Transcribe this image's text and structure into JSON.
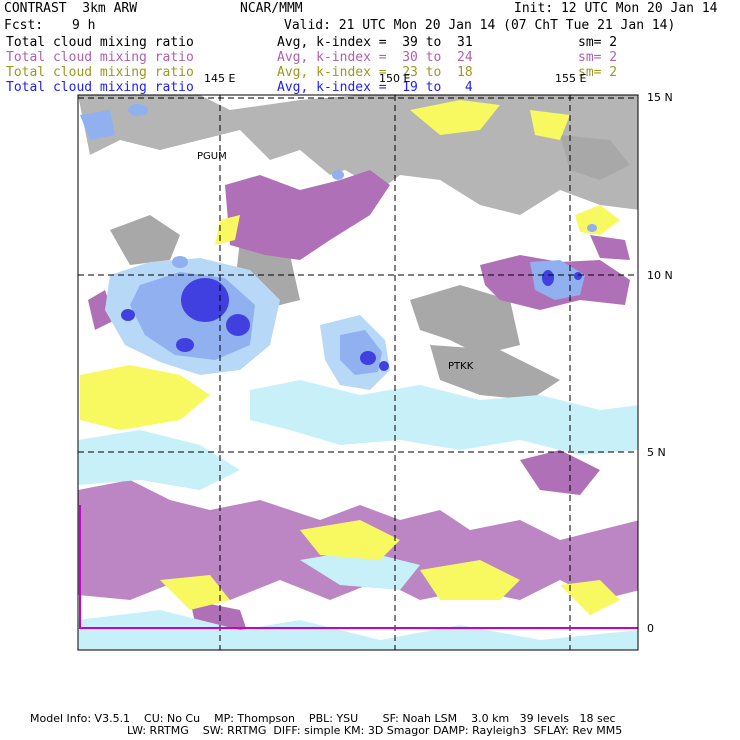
{
  "header": {
    "model": "CONTRAST  3km ARW",
    "center": "NCAR/MMM",
    "init": "Init: 12 UTC Mon 20 Jan 14",
    "fcst_label": "Fcst:",
    "fcst_value": "9 h",
    "valid": "Valid: 21 UTC Mon 20 Jan 14 (07 ChT Tue 21 Jan 14)"
  },
  "fields": [
    {
      "name": "Total cloud mixing ratio",
      "range": "Avg, k-index =  39 to  31",
      "sm": "sm= 2",
      "color": "#000000"
    },
    {
      "name": "Total cloud mixing ratio",
      "range": "Avg, k-index =  30 to  24",
      "sm": "sm= 2",
      "color": "#b060b0"
    },
    {
      "name": "Total cloud mixing ratio",
      "range": "Avg, k-index =  23 to  18",
      "sm": "sm= 2",
      "color": "#9a9a20"
    },
    {
      "name": "Total cloud mixing ratio",
      "range": "Avg, k-index =  19 to   4",
      "sm": "",
      "color": "#2020ff"
    }
  ],
  "map": {
    "lon_labels": [
      "145 E",
      "150 E",
      "155 E"
    ],
    "lat_labels": [
      "15 N",
      "10 N",
      "5 N",
      "0"
    ],
    "stations": [
      "PGUM",
      "PTKK"
    ],
    "colors": {
      "gray": "#a8a8a8",
      "magenta": "#b070b8",
      "yellow": "#f8f860",
      "lightblue": "#c8f0f8",
      "blue1": "#b8d8f8",
      "blue2": "#90b0f0",
      "blue3": "#4040e0",
      "border": "#cc00cc"
    }
  },
  "footer": {
    "line1": "Model Info: V3.5.1    CU: No Cu    MP: Thompson    PBL: YSU       SF: Noah LSM    3.0 km   39 levels   18 sec",
    "line2": "LW: RRTMG    SW: RRTMG  DIFF: simple KM: 3D Smagor DAMP: Rayleigh3  SFLAY: Rev MM5"
  }
}
